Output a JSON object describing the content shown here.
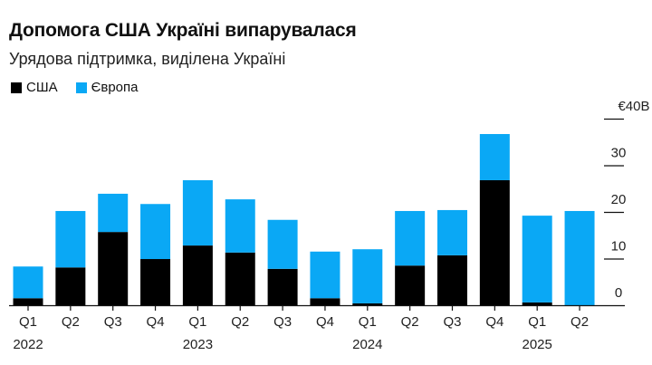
{
  "chart_data": {
    "type": "bar",
    "stacked": true,
    "title": "Допомога США Україні випарувалася",
    "subtitle": "Урядова підтримка, виділена Україні",
    "categories": [
      "Q1 2022",
      "Q2 2022",
      "Q3 2022",
      "Q4 2022",
      "Q1 2023",
      "Q2 2023",
      "Q3 2023",
      "Q4 2023",
      "Q1 2024",
      "Q2 2024",
      "Q3 2024",
      "Q4 2024",
      "Q1 2025",
      "Q2 2025"
    ],
    "x_tick_labels": [
      "Q1",
      "Q2",
      "Q3",
      "Q4",
      "Q1",
      "Q2",
      "Q3",
      "Q4",
      "Q1",
      "Q2",
      "Q3",
      "Q4",
      "Q1",
      "Q2"
    ],
    "year_labels": [
      {
        "index": 0,
        "label": "2022"
      },
      {
        "index": 4,
        "label": "2023"
      },
      {
        "index": 8,
        "label": "2024"
      },
      {
        "index": 12,
        "label": "2025"
      }
    ],
    "series": [
      {
        "name": "США",
        "color": "#000000",
        "values": [
          1.5,
          8.1,
          15.7,
          9.9,
          12.8,
          11.3,
          7.8,
          1.5,
          0.4,
          8.5,
          10.7,
          26.8,
          0.6,
          0
        ]
      },
      {
        "name": "Європа",
        "color": "#0aa8f5",
        "values": [
          6.8,
          12.1,
          8.2,
          11.8,
          14.0,
          11.4,
          10.5,
          10.0,
          11.6,
          11.7,
          9.7,
          9.9,
          18.6,
          20.2
        ]
      }
    ],
    "ylim": [
      0,
      40
    ],
    "y_ticks": [
      0,
      10,
      20,
      30,
      40
    ],
    "y_tick_labels": [
      "0",
      "10",
      "20",
      "30",
      "€40B"
    ],
    "y_axis_position": "right",
    "legend_placement": "top-left",
    "grid": false
  }
}
